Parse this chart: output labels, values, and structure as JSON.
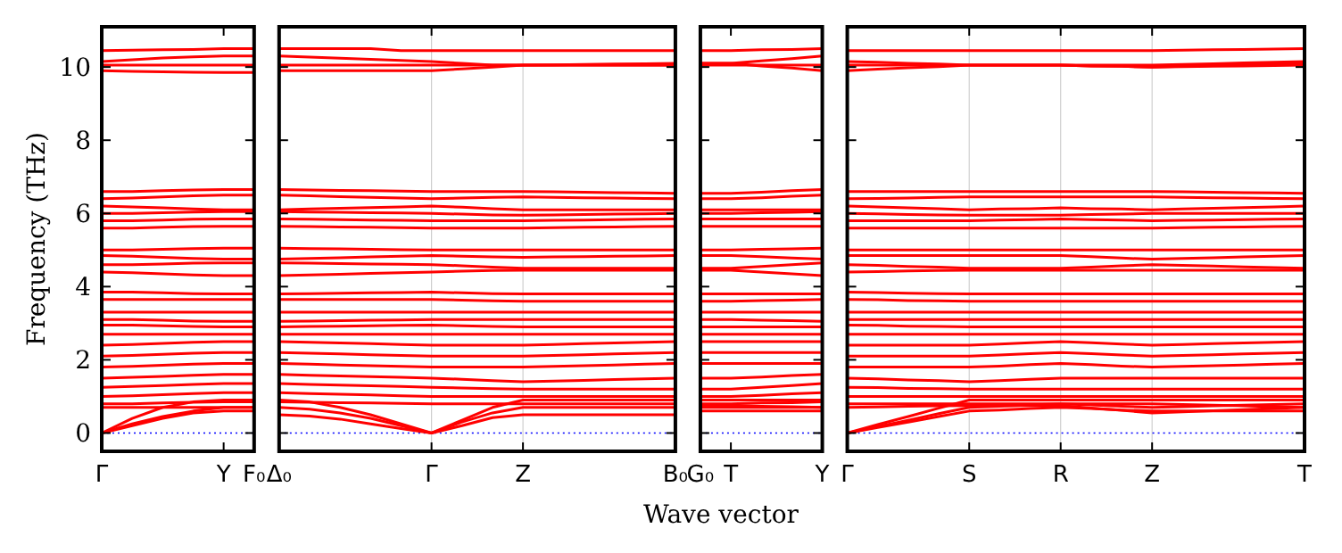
{
  "chart_data": [
    {
      "type": "line",
      "ylabel": "Frequency (THz)",
      "color": "#ff0000",
      "categories": [
        "Γ",
        null,
        null,
        null,
        "Y",
        "F₀"
      ],
      "ylim": [
        -0.5,
        11.1
      ],
      "yticks": [
        0,
        2,
        4,
        6,
        8,
        10
      ],
      "ref_lines": [
        {
          "axis": "y",
          "value": 0,
          "color": "#0000ff",
          "line_style": "dotted"
        }
      ],
      "series": [
        {
          "values": [
            10.45,
            10.46,
            10.47,
            10.48,
            10.5,
            10.5
          ]
        },
        {
          "values": [
            10.15,
            10.2,
            10.25,
            10.28,
            10.3,
            10.3
          ]
        },
        {
          "values": [
            10.05,
            10.05,
            10.05,
            10.05,
            10.05,
            10.05
          ]
        },
        {
          "values": [
            9.9,
            9.88,
            9.87,
            9.86,
            9.85,
            9.85
          ]
        },
        {
          "values": [
            6.6,
            6.6,
            6.62,
            6.64,
            6.65,
            6.65
          ]
        },
        {
          "values": [
            6.4,
            6.42,
            6.45,
            6.48,
            6.5,
            6.5
          ]
        },
        {
          "values": [
            6.2,
            6.18,
            6.15,
            6.12,
            6.1,
            6.1
          ]
        },
        {
          "values": [
            6.0,
            6.0,
            6.02,
            6.04,
            6.05,
            6.05
          ]
        },
        {
          "values": [
            5.8,
            5.8,
            5.82,
            5.84,
            5.85,
            5.85
          ]
        },
        {
          "values": [
            5.6,
            5.6,
            5.62,
            5.64,
            5.65,
            5.65
          ]
        },
        {
          "values": [
            5.0,
            5.0,
            5.02,
            5.04,
            5.05,
            5.05
          ]
        },
        {
          "values": [
            4.85,
            4.83,
            4.8,
            4.77,
            4.75,
            4.75
          ]
        },
        {
          "values": [
            4.6,
            4.6,
            4.62,
            4.64,
            4.65,
            4.65
          ]
        },
        {
          "values": [
            4.4,
            4.38,
            4.35,
            4.32,
            4.3,
            4.3
          ]
        },
        {
          "values": [
            3.85,
            3.85,
            3.83,
            3.81,
            3.8,
            3.8
          ]
        },
        {
          "values": [
            3.65,
            3.65,
            3.65,
            3.65,
            3.65,
            3.65
          ]
        },
        {
          "values": [
            3.3,
            3.3,
            3.3,
            3.3,
            3.3,
            3.3
          ]
        },
        {
          "values": [
            3.1,
            3.1,
            3.08,
            3.06,
            3.05,
            3.05
          ]
        },
        {
          "values": [
            2.95,
            2.95,
            2.93,
            2.91,
            2.9,
            2.9
          ]
        },
        {
          "values": [
            2.7,
            2.7,
            2.7,
            2.7,
            2.7,
            2.7
          ]
        },
        {
          "values": [
            2.4,
            2.42,
            2.45,
            2.48,
            2.5,
            2.5
          ]
        },
        {
          "values": [
            2.1,
            2.12,
            2.15,
            2.18,
            2.2,
            2.2
          ]
        },
        {
          "values": [
            1.8,
            1.82,
            1.85,
            1.88,
            1.9,
            1.9
          ]
        },
        {
          "values": [
            1.5,
            1.52,
            1.55,
            1.58,
            1.6,
            1.6
          ]
        },
        {
          "values": [
            1.25,
            1.27,
            1.3,
            1.33,
            1.35,
            1.35
          ]
        },
        {
          "values": [
            1.0,
            1.02,
            1.05,
            1.08,
            1.1,
            1.1
          ]
        },
        {
          "values": [
            0.8,
            0.8,
            0.82,
            0.84,
            0.85,
            0.85
          ]
        },
        {
          "values": [
            0.7,
            0.7,
            0.7,
            0.7,
            0.7,
            0.7
          ]
        },
        {
          "values": [
            0,
            0.2,
            0.4,
            0.55,
            0.6,
            0.6
          ]
        },
        {
          "values": [
            0,
            0.25,
            0.45,
            0.6,
            0.7,
            0.7
          ]
        },
        {
          "values": [
            0,
            0.4,
            0.7,
            0.85,
            0.9,
            0.9
          ]
        }
      ]
    },
    {
      "type": "line",
      "color": "#ff0000",
      "grid": "x",
      "tick_labels": "x",
      "categories": [
        "Δ₀",
        null,
        null,
        null,
        null,
        "Γ",
        null,
        null,
        "Z",
        null,
        null,
        null,
        null,
        "B₀"
      ],
      "ylim": [
        -0.5,
        11.1
      ],
      "yticks": [
        0,
        2,
        4,
        6,
        8,
        10
      ],
      "ref_lines": [
        {
          "axis": "y",
          "value": 0,
          "color": "#0000ff",
          "line_style": "dotted"
        }
      ],
      "series": [
        {
          "values": [
            10.5,
            10.5,
            10.5,
            10.5,
            10.45,
            10.45,
            10.45,
            10.45,
            10.45,
            10.45,
            10.45,
            10.45,
            10.45,
            10.45
          ]
        },
        {
          "values": [
            10.3,
            10.27,
            10.24,
            10.21,
            10.18,
            10.15,
            10.1,
            10.05,
            10.05,
            10.05,
            10.05,
            10.05,
            10.05,
            10.05
          ]
        },
        {
          "values": [
            10.05,
            10.05,
            10.05,
            10.05,
            10.05,
            10.05,
            10.05,
            10.05,
            10.05,
            10.05,
            10.05,
            10.05,
            10.05,
            10.05
          ]
        },
        {
          "values": [
            9.9,
            9.9,
            9.9,
            9.9,
            9.9,
            9.9,
            9.95,
            10.0,
            10.05,
            10.06,
            10.07,
            10.08,
            10.09,
            10.1
          ]
        },
        {
          "values": [
            6.65,
            6.64,
            6.63,
            6.62,
            6.61,
            6.6,
            6.6,
            6.6,
            6.6,
            6.59,
            6.58,
            6.57,
            6.56,
            6.55
          ]
        },
        {
          "values": [
            6.5,
            6.48,
            6.46,
            6.44,
            6.42,
            6.4,
            6.42,
            6.44,
            6.45,
            6.44,
            6.43,
            6.42,
            6.41,
            6.4
          ]
        },
        {
          "values": [
            6.1,
            6.12,
            6.14,
            6.16,
            6.18,
            6.2,
            6.17,
            6.13,
            6.1,
            6.1,
            6.1,
            6.1,
            6.1,
            6.1
          ]
        },
        {
          "values": [
            6.05,
            6.04,
            6.03,
            6.02,
            6.01,
            6.0,
            5.98,
            5.96,
            5.95,
            5.96,
            5.97,
            5.98,
            5.99,
            6.0
          ]
        },
        {
          "values": [
            5.85,
            5.84,
            5.83,
            5.82,
            5.81,
            5.8,
            5.8,
            5.8,
            5.8,
            5.81,
            5.82,
            5.83,
            5.84,
            5.85
          ]
        },
        {
          "values": [
            5.65,
            5.64,
            5.63,
            5.62,
            5.61,
            5.6,
            5.6,
            5.6,
            5.6,
            5.61,
            5.62,
            5.63,
            5.64,
            5.65
          ]
        },
        {
          "values": [
            5.05,
            5.04,
            5.03,
            5.02,
            5.01,
            5.0,
            5.0,
            5.0,
            5.0,
            5.0,
            5.0,
            5.0,
            5.0,
            5.0
          ]
        },
        {
          "values": [
            4.75,
            4.77,
            4.79,
            4.81,
            4.83,
            4.85,
            4.83,
            4.81,
            4.8,
            4.81,
            4.82,
            4.83,
            4.84,
            4.85
          ]
        },
        {
          "values": [
            4.65,
            4.64,
            4.63,
            4.62,
            4.61,
            4.6,
            4.57,
            4.53,
            4.5,
            4.5,
            4.5,
            4.5,
            4.5,
            4.5
          ]
        },
        {
          "values": [
            4.3,
            4.32,
            4.34,
            4.36,
            4.38,
            4.4,
            4.42,
            4.44,
            4.45,
            4.45,
            4.45,
            4.45,
            4.45,
            4.45
          ]
        },
        {
          "values": [
            3.8,
            3.81,
            3.82,
            3.83,
            3.84,
            3.85,
            3.83,
            3.81,
            3.8,
            3.8,
            3.8,
            3.8,
            3.8,
            3.8
          ]
        },
        {
          "values": [
            3.65,
            3.65,
            3.65,
            3.65,
            3.65,
            3.65,
            3.63,
            3.61,
            3.6,
            3.6,
            3.6,
            3.6,
            3.6,
            3.6
          ]
        },
        {
          "values": [
            3.3,
            3.3,
            3.3,
            3.3,
            3.3,
            3.3,
            3.3,
            3.3,
            3.3,
            3.3,
            3.3,
            3.3,
            3.3,
            3.3
          ]
        },
        {
          "values": [
            3.05,
            3.06,
            3.07,
            3.08,
            3.09,
            3.1,
            3.1,
            3.1,
            3.1,
            3.1,
            3.1,
            3.1,
            3.1,
            3.1
          ]
        },
        {
          "values": [
            2.9,
            2.91,
            2.92,
            2.93,
            2.94,
            2.95,
            2.93,
            2.91,
            2.9,
            2.9,
            2.9,
            2.9,
            2.9,
            2.9
          ]
        },
        {
          "values": [
            2.7,
            2.7,
            2.7,
            2.7,
            2.7,
            2.7,
            2.7,
            2.7,
            2.7,
            2.7,
            2.7,
            2.7,
            2.7,
            2.7
          ]
        },
        {
          "values": [
            2.5,
            2.48,
            2.46,
            2.44,
            2.42,
            2.4,
            2.4,
            2.4,
            2.4,
            2.42,
            2.44,
            2.46,
            2.48,
            2.5
          ]
        },
        {
          "values": [
            2.2,
            2.18,
            2.16,
            2.14,
            2.12,
            2.1,
            2.1,
            2.1,
            2.1,
            2.12,
            2.14,
            2.16,
            2.18,
            2.2
          ]
        },
        {
          "values": [
            1.9,
            1.88,
            1.86,
            1.84,
            1.82,
            1.8,
            1.8,
            1.8,
            1.8,
            1.82,
            1.84,
            1.86,
            1.88,
            1.9
          ]
        },
        {
          "values": [
            1.6,
            1.58,
            1.56,
            1.54,
            1.52,
            1.5,
            1.47,
            1.43,
            1.4,
            1.42,
            1.44,
            1.46,
            1.48,
            1.5
          ]
        },
        {
          "values": [
            1.35,
            1.33,
            1.31,
            1.29,
            1.27,
            1.25,
            1.23,
            1.21,
            1.2,
            1.2,
            1.2,
            1.2,
            1.2,
            1.2
          ]
        },
        {
          "values": [
            1.1,
            1.08,
            1.06,
            1.04,
            1.02,
            1.0,
            1.0,
            1.0,
            1.0,
            1.0,
            1.0,
            1.0,
            1.0,
            1.0
          ]
        },
        {
          "values": [
            0.85,
            0.84,
            0.83,
            0.82,
            0.81,
            0.8,
            0.8,
            0.8,
            0.8,
            0.8,
            0.8,
            0.8,
            0.8,
            0.8
          ]
        },
        {
          "values": [
            0.5,
            0.46,
            0.38,
            0.25,
            0.12,
            0,
            0.2,
            0.42,
            0.5,
            0.5,
            0.5,
            0.5,
            0.5,
            0.5
          ]
        },
        {
          "values": [
            0.7,
            0.65,
            0.55,
            0.4,
            0.2,
            0,
            0.3,
            0.55,
            0.7,
            0.7,
            0.7,
            0.7,
            0.7,
            0.7
          ]
        },
        {
          "values": [
            0.9,
            0.85,
            0.7,
            0.5,
            0.25,
            0,
            0.35,
            0.7,
            0.9,
            0.9,
            0.9,
            0.9,
            0.9,
            0.9
          ]
        }
      ]
    },
    {
      "type": "line",
      "color": "#ff0000",
      "tick_labels": "x",
      "xlabel": "Wave vector",
      "categories": [
        "G₀",
        "T",
        null,
        null,
        "Y"
      ],
      "ylim": [
        -0.5,
        11.1
      ],
      "yticks": [
        0,
        2,
        4,
        6,
        8,
        10
      ],
      "ref_lines": [
        {
          "axis": "y",
          "value": 0,
          "color": "#0000ff",
          "line_style": "dotted"
        }
      ],
      "series": [
        {
          "values": [
            10.45,
            10.45,
            10.47,
            10.48,
            10.5
          ]
        },
        {
          "values": [
            10.1,
            10.1,
            10.17,
            10.23,
            10.3
          ]
        },
        {
          "values": [
            10.05,
            10.05,
            10.05,
            10.05,
            10.05
          ]
        },
        {
          "values": [
            10.1,
            10.1,
            10.03,
            9.97,
            9.9
          ]
        },
        {
          "values": [
            6.55,
            6.55,
            6.58,
            6.62,
            6.65
          ]
        },
        {
          "values": [
            6.4,
            6.4,
            6.43,
            6.47,
            6.5
          ]
        },
        {
          "values": [
            6.1,
            6.1,
            6.1,
            6.1,
            6.1
          ]
        },
        {
          "values": [
            6.0,
            6.0,
            6.02,
            6.03,
            6.05
          ]
        },
        {
          "values": [
            5.85,
            5.85,
            5.85,
            5.85,
            5.85
          ]
        },
        {
          "values": [
            5.65,
            5.65,
            5.65,
            5.65,
            5.65
          ]
        },
        {
          "values": [
            5.0,
            5.0,
            5.02,
            5.03,
            5.05
          ]
        },
        {
          "values": [
            4.85,
            4.85,
            4.82,
            4.78,
            4.75
          ]
        },
        {
          "values": [
            4.5,
            4.5,
            4.55,
            4.6,
            4.65
          ]
        },
        {
          "values": [
            4.45,
            4.45,
            4.4,
            4.35,
            4.3
          ]
        },
        {
          "values": [
            3.8,
            3.8,
            3.8,
            3.8,
            3.8
          ]
        },
        {
          "values": [
            3.6,
            3.6,
            3.62,
            3.63,
            3.65
          ]
        },
        {
          "values": [
            3.3,
            3.3,
            3.3,
            3.3,
            3.3
          ]
        },
        {
          "values": [
            3.1,
            3.1,
            3.08,
            3.07,
            3.05
          ]
        },
        {
          "values": [
            2.9,
            2.9,
            2.9,
            2.9,
            2.9
          ]
        },
        {
          "values": [
            2.7,
            2.7,
            2.7,
            2.7,
            2.7
          ]
        },
        {
          "values": [
            2.5,
            2.5,
            2.5,
            2.5,
            2.5
          ]
        },
        {
          "values": [
            2.2,
            2.2,
            2.2,
            2.2,
            2.2
          ]
        },
        {
          "values": [
            1.9,
            1.9,
            1.9,
            1.9,
            1.9
          ]
        },
        {
          "values": [
            1.5,
            1.5,
            1.53,
            1.57,
            1.6
          ]
        },
        {
          "values": [
            1.2,
            1.2,
            1.25,
            1.3,
            1.35
          ]
        },
        {
          "values": [
            1.0,
            1.0,
            1.03,
            1.07,
            1.1
          ]
        },
        {
          "values": [
            0.8,
            0.8,
            0.82,
            0.83,
            0.85
          ]
        },
        {
          "values": [
            0.75,
            0.75,
            0.73,
            0.72,
            0.7
          ]
        },
        {
          "values": [
            0.6,
            0.6,
            0.6,
            0.6,
            0.6
          ]
        },
        {
          "values": [
            0.7,
            0.7,
            0.7,
            0.7,
            0.7
          ]
        },
        {
          "values": [
            0.9,
            0.9,
            0.9,
            0.9,
            0.9
          ]
        }
      ]
    },
    {
      "type": "line",
      "color": "#ff0000",
      "grid": "x",
      "tick_labels": "x",
      "categories": [
        "Γ",
        null,
        null,
        null,
        "S",
        null,
        null,
        "R",
        null,
        null,
        "Z",
        null,
        null,
        null,
        null,
        "T"
      ],
      "ylim": [
        -0.5,
        11.1
      ],
      "yticks": [
        0,
        2,
        4,
        6,
        8,
        10
      ],
      "ref_lines": [
        {
          "axis": "y",
          "value": 0,
          "color": "#0000ff",
          "line_style": "dotted"
        }
      ],
      "series": [
        {
          "values": [
            10.45,
            10.45,
            10.45,
            10.45,
            10.45,
            10.45,
            10.45,
            10.45,
            10.45,
            10.45,
            10.45,
            10.46,
            10.47,
            10.48,
            10.49,
            10.5
          ]
        },
        {
          "values": [
            10.15,
            10.13,
            10.1,
            10.08,
            10.05,
            10.05,
            10.05,
            10.05,
            10.05,
            10.05,
            10.05,
            10.07,
            10.09,
            10.11,
            10.13,
            10.15
          ]
        },
        {
          "values": [
            10.05,
            10.05,
            10.05,
            10.05,
            10.05,
            10.05,
            10.05,
            10.05,
            10.03,
            10.02,
            10.0,
            10.02,
            10.04,
            10.06,
            10.08,
            10.1
          ]
        },
        {
          "values": [
            9.9,
            9.94,
            9.98,
            10.01,
            10.05,
            10.05,
            10.05,
            10.05,
            10.03,
            10.02,
            10.0,
            10.01,
            10.02,
            10.03,
            10.04,
            10.05
          ]
        },
        {
          "values": [
            6.6,
            6.6,
            6.6,
            6.6,
            6.6,
            6.6,
            6.6,
            6.6,
            6.6,
            6.6,
            6.6,
            6.59,
            6.58,
            6.57,
            6.56,
            6.55
          ]
        },
        {
          "values": [
            6.4,
            6.41,
            6.42,
            6.44,
            6.45,
            6.45,
            6.45,
            6.45,
            6.45,
            6.45,
            6.45,
            6.44,
            6.43,
            6.42,
            6.41,
            6.4
          ]
        },
        {
          "values": [
            6.2,
            6.18,
            6.15,
            6.13,
            6.1,
            6.12,
            6.13,
            6.15,
            6.13,
            6.12,
            6.1,
            6.12,
            6.14,
            6.16,
            6.18,
            6.2
          ]
        },
        {
          "values": [
            6.0,
            5.99,
            5.97,
            5.96,
            5.95,
            5.95,
            5.95,
            5.95,
            5.97,
            5.98,
            6.0,
            6.0,
            6.0,
            6.0,
            6.0,
            6.0
          ]
        },
        {
          "values": [
            5.8,
            5.8,
            5.8,
            5.8,
            5.8,
            5.82,
            5.83,
            5.85,
            5.83,
            5.82,
            5.8,
            5.81,
            5.82,
            5.83,
            5.84,
            5.85
          ]
        },
        {
          "values": [
            5.6,
            5.6,
            5.6,
            5.6,
            5.6,
            5.6,
            5.6,
            5.6,
            5.6,
            5.6,
            5.6,
            5.61,
            5.62,
            5.63,
            5.64,
            5.65
          ]
        },
        {
          "values": [
            5.0,
            5.0,
            5.0,
            5.0,
            5.0,
            5.0,
            5.0,
            5.0,
            5.0,
            5.0,
            5.0,
            5.0,
            5.0,
            5.0,
            5.0,
            5.0
          ]
        },
        {
          "values": [
            4.85,
            4.85,
            4.85,
            4.85,
            4.85,
            4.85,
            4.85,
            4.85,
            4.82,
            4.78,
            4.75,
            4.77,
            4.79,
            4.81,
            4.83,
            4.85
          ]
        },
        {
          "values": [
            4.6,
            4.58,
            4.55,
            4.53,
            4.5,
            4.5,
            4.5,
            4.5,
            4.53,
            4.57,
            4.6,
            4.58,
            4.56,
            4.54,
            4.52,
            4.5
          ]
        },
        {
          "values": [
            4.4,
            4.41,
            4.43,
            4.44,
            4.45,
            4.45,
            4.45,
            4.45,
            4.45,
            4.45,
            4.45,
            4.45,
            4.45,
            4.45,
            4.45,
            4.45
          ]
        },
        {
          "values": [
            3.85,
            3.84,
            3.82,
            3.81,
            3.8,
            3.8,
            3.8,
            3.8,
            3.8,
            3.8,
            3.8,
            3.8,
            3.8,
            3.8,
            3.8,
            3.8
          ]
        },
        {
          "values": [
            3.65,
            3.64,
            3.62,
            3.61,
            3.6,
            3.6,
            3.6,
            3.6,
            3.6,
            3.6,
            3.6,
            3.6,
            3.6,
            3.6,
            3.6,
            3.6
          ]
        },
        {
          "values": [
            3.3,
            3.3,
            3.3,
            3.3,
            3.3,
            3.3,
            3.3,
            3.3,
            3.3,
            3.3,
            3.3,
            3.3,
            3.3,
            3.3,
            3.3,
            3.3
          ]
        },
        {
          "values": [
            3.1,
            3.1,
            3.1,
            3.1,
            3.1,
            3.1,
            3.1,
            3.1,
            3.1,
            3.1,
            3.1,
            3.1,
            3.1,
            3.1,
            3.1,
            3.1
          ]
        },
        {
          "values": [
            2.95,
            2.94,
            2.92,
            2.91,
            2.9,
            2.9,
            2.9,
            2.9,
            2.9,
            2.9,
            2.9,
            2.9,
            2.9,
            2.9,
            2.9,
            2.9
          ]
        },
        {
          "values": [
            2.7,
            2.7,
            2.7,
            2.7,
            2.7,
            2.7,
            2.7,
            2.7,
            2.7,
            2.7,
            2.7,
            2.7,
            2.7,
            2.7,
            2.7,
            2.7
          ]
        },
        {
          "values": [
            2.4,
            2.4,
            2.4,
            2.4,
            2.4,
            2.43,
            2.47,
            2.5,
            2.47,
            2.43,
            2.4,
            2.42,
            2.44,
            2.46,
            2.48,
            2.5
          ]
        },
        {
          "values": [
            2.1,
            2.1,
            2.1,
            2.1,
            2.1,
            2.13,
            2.17,
            2.2,
            2.17,
            2.13,
            2.1,
            2.12,
            2.14,
            2.16,
            2.18,
            2.2
          ]
        },
        {
          "values": [
            1.8,
            1.8,
            1.8,
            1.8,
            1.8,
            1.83,
            1.87,
            1.9,
            1.87,
            1.83,
            1.8,
            1.82,
            1.84,
            1.86,
            1.88,
            1.9
          ]
        },
        {
          "values": [
            1.5,
            1.48,
            1.45,
            1.43,
            1.4,
            1.43,
            1.47,
            1.5,
            1.5,
            1.5,
            1.5,
            1.5,
            1.5,
            1.5,
            1.5,
            1.5
          ]
        },
        {
          "values": [
            1.25,
            1.24,
            1.22,
            1.21,
            1.2,
            1.2,
            1.2,
            1.2,
            1.2,
            1.2,
            1.2,
            1.2,
            1.2,
            1.2,
            1.2,
            1.2
          ]
        },
        {
          "values": [
            1.0,
            1.0,
            1.0,
            1.0,
            1.0,
            1.0,
            1.0,
            1.0,
            1.0,
            1.0,
            1.0,
            1.0,
            1.0,
            1.0,
            1.0,
            1.0
          ]
        },
        {
          "values": [
            0.8,
            0.8,
            0.8,
            0.8,
            0.8,
            0.8,
            0.8,
            0.8,
            0.77,
            0.73,
            0.7,
            0.72,
            0.74,
            0.76,
            0.78,
            0.8
          ]
        },
        {
          "values": [
            0.7,
            0.71,
            0.73,
            0.74,
            0.75,
            0.75,
            0.75,
            0.75,
            0.68,
            0.62,
            0.55,
            0.58,
            0.61,
            0.64,
            0.67,
            0.7
          ]
        },
        {
          "values": [
            0,
            0.15,
            0.3,
            0.45,
            0.6,
            0.63,
            0.67,
            0.7,
            0.67,
            0.63,
            0.6,
            0.6,
            0.6,
            0.6,
            0.6,
            0.6
          ]
        },
        {
          "values": [
            0,
            0.18,
            0.35,
            0.53,
            0.7,
            0.73,
            0.77,
            0.8,
            0.8,
            0.8,
            0.8,
            0.78,
            0.76,
            0.74,
            0.72,
            0.7
          ]
        },
        {
          "values": [
            0,
            0.23,
            0.45,
            0.68,
            0.9,
            0.9,
            0.9,
            0.9,
            0.9,
            0.9,
            0.9,
            0.9,
            0.9,
            0.9,
            0.9,
            0.9
          ]
        }
      ]
    }
  ]
}
